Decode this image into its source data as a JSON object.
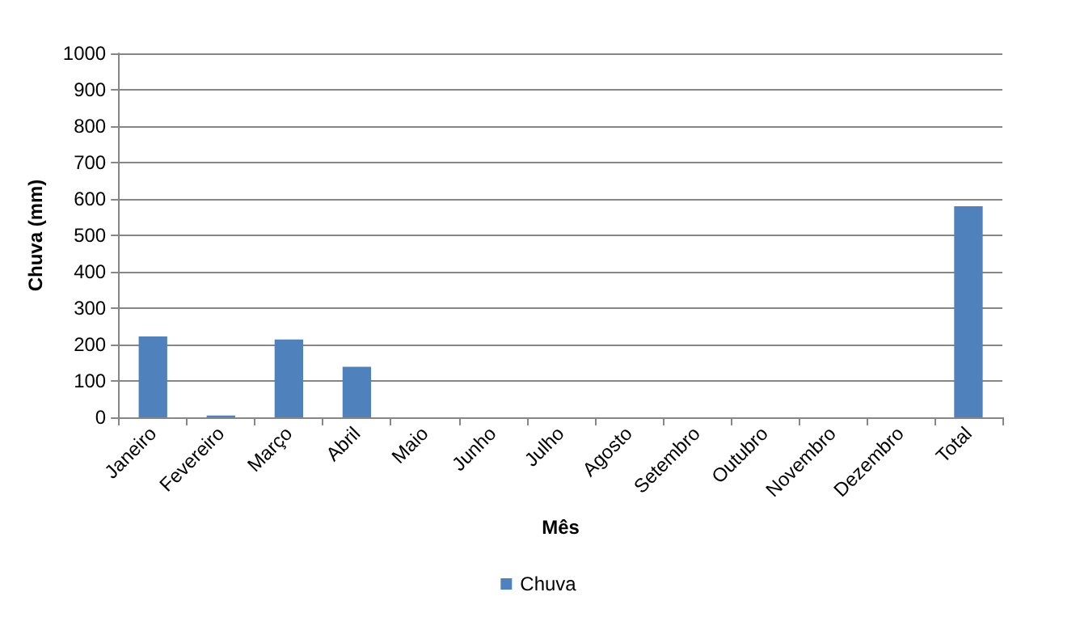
{
  "chart_data": {
    "type": "bar",
    "xlabel": "Mês",
    "ylabel": "Chuva (mm)",
    "categories": [
      "Janeiro",
      "Fevereiro",
      "Março",
      "Abril",
      "Maio",
      "Junho",
      "Julho",
      "Agosto",
      "Setembro",
      "Outubro",
      "Novembro",
      "Dezembro",
      "Total"
    ],
    "series": [
      {
        "name": "Chuva",
        "color": "#4f81bd",
        "values": [
          222,
          5,
          214,
          139,
          null,
          null,
          null,
          null,
          null,
          null,
          null,
          null,
          580
        ]
      }
    ],
    "ylim": [
      0,
      1000
    ],
    "yticks": [
      0,
      100,
      200,
      300,
      400,
      500,
      600,
      700,
      800,
      900,
      1000
    ],
    "grid": "y",
    "legend": "bottom"
  }
}
